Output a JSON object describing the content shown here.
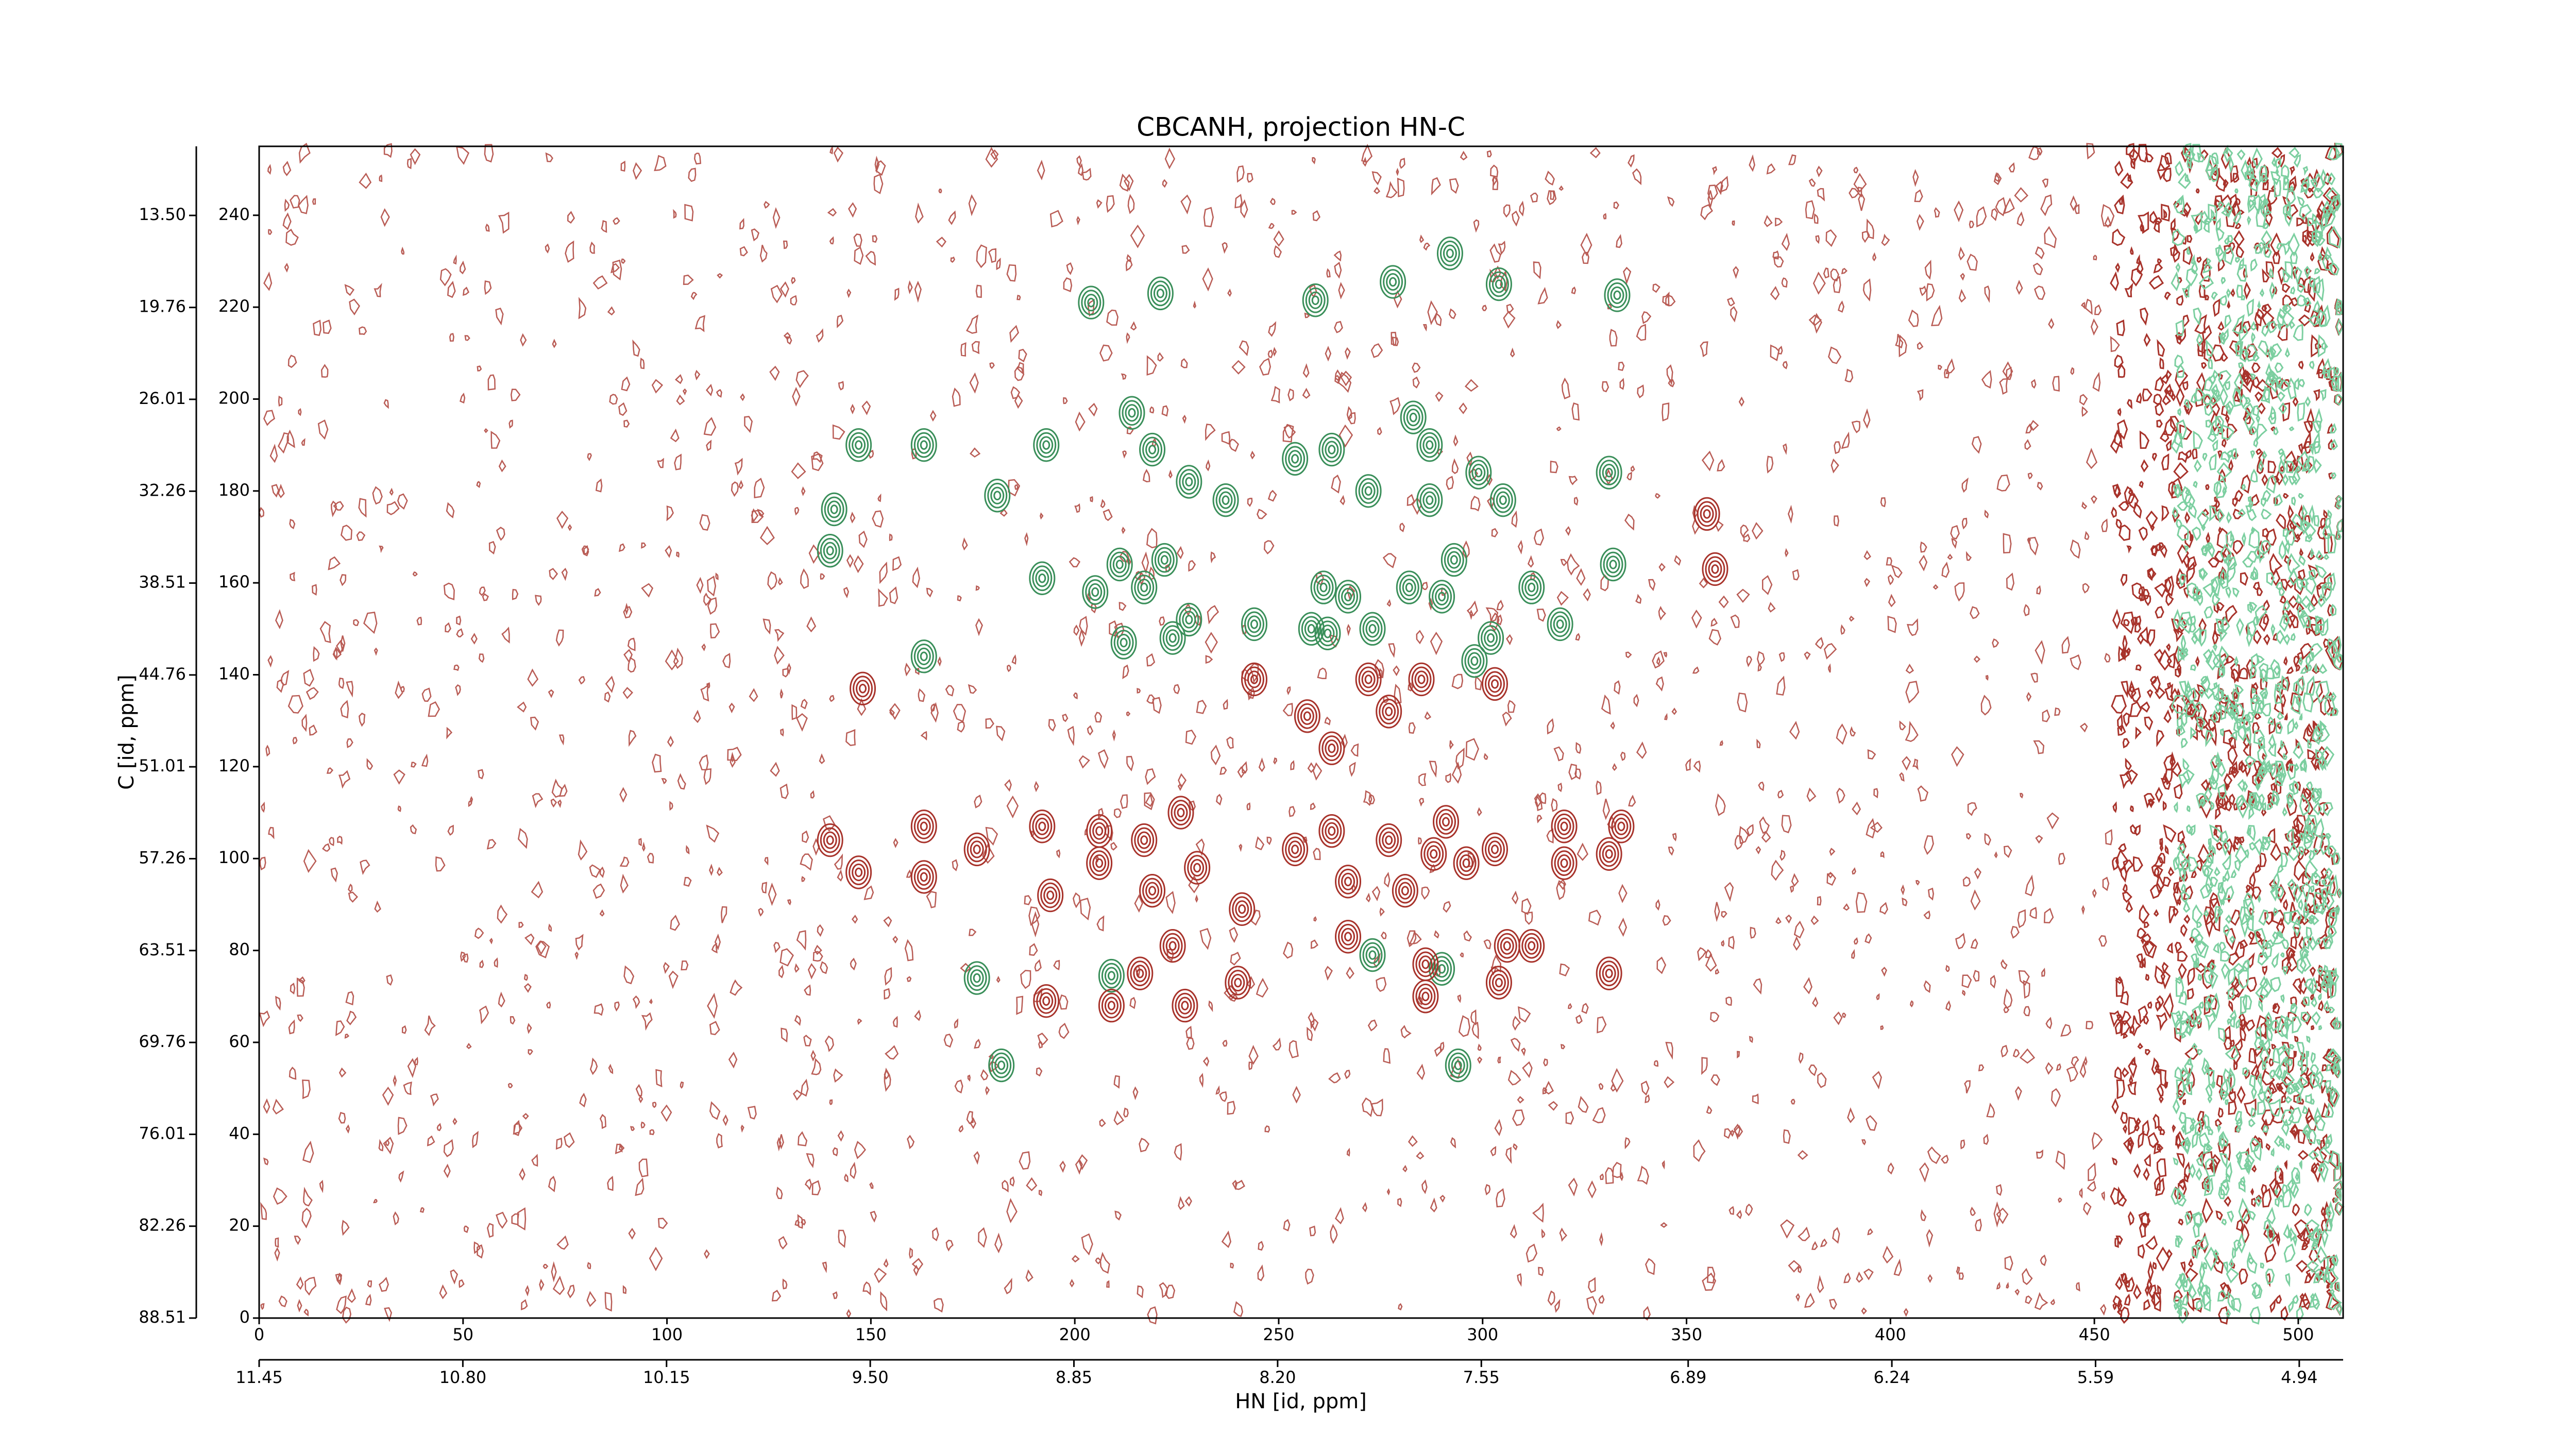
{
  "chart_data": {
    "type": "contour",
    "title": "CBCANH, projection HN-C",
    "xlabel": "HN [id, ppm]",
    "ylabel": "C [id, ppm]",
    "xlim": [
      0,
      511
    ],
    "ylim": [
      0,
      255
    ],
    "xticks": [
      0,
      50,
      100,
      150,
      200,
      250,
      300,
      350,
      400,
      450,
      500
    ],
    "yticks": [
      0,
      20,
      40,
      60,
      80,
      100,
      120,
      140,
      160,
      180,
      200,
      220,
      240
    ],
    "x2lim": [
      11.45,
      4.8
    ],
    "x2ticks": [
      {
        "value": 11.45,
        "label": "11.45"
      },
      {
        "value": 10.8,
        "label": "10.80"
      },
      {
        "value": 10.15,
        "label": "10.15"
      },
      {
        "value": 9.5,
        "label": "9.50"
      },
      {
        "value": 8.85,
        "label": "8.85"
      },
      {
        "value": 8.2,
        "label": "8.20"
      },
      {
        "value": 7.55,
        "label": "7.55"
      },
      {
        "value": 6.89,
        "label": "6.89"
      },
      {
        "value": 6.24,
        "label": "6.24"
      },
      {
        "value": 5.59,
        "label": "5.59"
      },
      {
        "value": 4.94,
        "label": "4.94"
      }
    ],
    "y2lim": [
      88.51,
      8.8
    ],
    "y2ticks": [
      {
        "value": 13.5,
        "label": "13.50"
      },
      {
        "value": 19.76,
        "label": "19.76"
      },
      {
        "value": 26.01,
        "label": "26.01"
      },
      {
        "value": 32.26,
        "label": "32.26"
      },
      {
        "value": 38.51,
        "label": "38.51"
      },
      {
        "value": 44.76,
        "label": "44.76"
      },
      {
        "value": 51.01,
        "label": "51.01"
      },
      {
        "value": 57.26,
        "label": "57.26"
      },
      {
        "value": 63.51,
        "label": "63.51"
      },
      {
        "value": 69.76,
        "label": "69.76"
      },
      {
        "value": 76.01,
        "label": "76.01"
      },
      {
        "value": 82.26,
        "label": "82.26"
      },
      {
        "value": 88.51,
        "label": "88.51"
      }
    ],
    "series": [
      {
        "color": "#3a8f5a",
        "x": [
          292,
          278,
          204,
          221,
          259,
          304,
          333,
          214,
          283,
          163,
          193,
          147,
          219,
          254,
          263,
          287,
          299,
          331,
          181,
          237,
          228,
          272,
          287,
          141,
          305,
          140,
          211,
          222,
          192,
          217,
          293,
          332,
          261,
          267,
          282,
          312,
          205,
          228,
          224,
          212,
          244,
          258,
          273,
          302,
          319,
          163,
          290,
          262,
          298,
          176,
          182,
          209,
          294,
          273,
          290
        ],
        "values": [
          231.7,
          225.5,
          221,
          223,
          221.5,
          225,
          222.6,
          197,
          196,
          190,
          190,
          190,
          189,
          187,
          189,
          190,
          184,
          184,
          179,
          178,
          182,
          180,
          178,
          176,
          178,
          167,
          164,
          165,
          161,
          159,
          165,
          164,
          159,
          157,
          159,
          159,
          158,
          152,
          148,
          147,
          151,
          150,
          150,
          148,
          151,
          144,
          157,
          149,
          143,
          74,
          55,
          74.5,
          55,
          79,
          76
        ]
      },
      {
        "color": "#a8332b",
        "x": [
          148,
          244,
          257,
          272,
          277,
          285,
          303,
          140,
          147,
          163,
          163,
          176,
          192,
          194,
          206,
          206,
          217,
          219,
          226,
          230,
          241,
          240,
          224,
          216,
          193,
          227,
          209,
          254,
          263,
          267,
          277,
          281,
          288,
          296,
          303,
          306,
          312,
          286,
          286,
          304,
          320,
          320,
          331,
          334,
          331,
          291,
          267,
          263,
          355,
          357
        ],
        "values": [
          137,
          139,
          131,
          139,
          132,
          139,
          138,
          104,
          97,
          107,
          96,
          102,
          107,
          92,
          106,
          99,
          104,
          93,
          110,
          98,
          89,
          73,
          81,
          75,
          69,
          68,
          68,
          102,
          106,
          95,
          104,
          93,
          101,
          99,
          102,
          81,
          81,
          77,
          70,
          73,
          107,
          99,
          101,
          107,
          75,
          108,
          83,
          124,
          175,
          163
        ]
      }
    ]
  }
}
